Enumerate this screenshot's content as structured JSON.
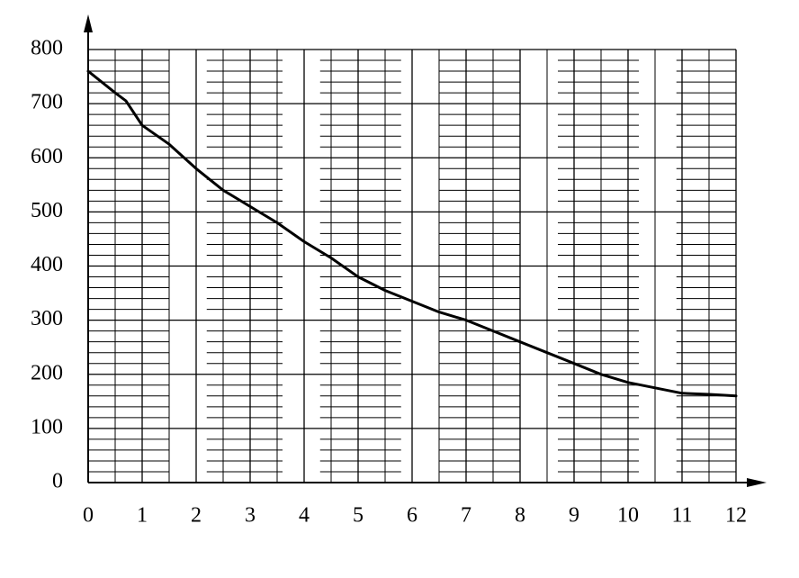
{
  "chart_data": {
    "type": "line",
    "x": [
      0,
      0.5,
      0.7,
      1,
      1.5,
      2,
      2.5,
      3,
      3.5,
      4,
      4.5,
      5,
      5.5,
      6,
      6.5,
      7,
      7.5,
      8,
      8.5,
      9,
      9.5,
      10,
      10.5,
      11,
      11.5,
      12
    ],
    "values": [
      760,
      720,
      705,
      660,
      625,
      580,
      540,
      510,
      480,
      445,
      415,
      380,
      355,
      335,
      315,
      300,
      280,
      260,
      240,
      220,
      200,
      185,
      175,
      165,
      163,
      160
    ],
    "color": "#000000",
    "xlim": [
      0,
      12
    ],
    "xticks": [
      0,
      1,
      2,
      3,
      4,
      5,
      6,
      7,
      8,
      9,
      10,
      11,
      12
    ],
    "ylim": [
      0,
      800
    ],
    "yticks": [
      0,
      100,
      200,
      300,
      400,
      500,
      600,
      700,
      800
    ],
    "grid": true
  }
}
